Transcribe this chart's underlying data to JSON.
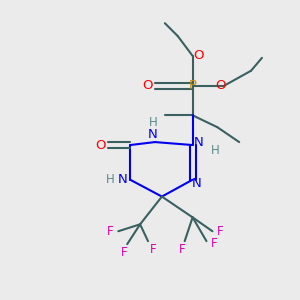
{
  "bg_color": "#ebebeb",
  "colors": {
    "bond": "#3a6060",
    "bond_dark": "#2a4040",
    "N": "#0000ee",
    "O": "#ff0000",
    "P": "#cc8800",
    "F": "#dd00aa",
    "H": "#5a8a8a"
  },
  "figsize": [
    3.0,
    3.0
  ],
  "dpi": 100
}
